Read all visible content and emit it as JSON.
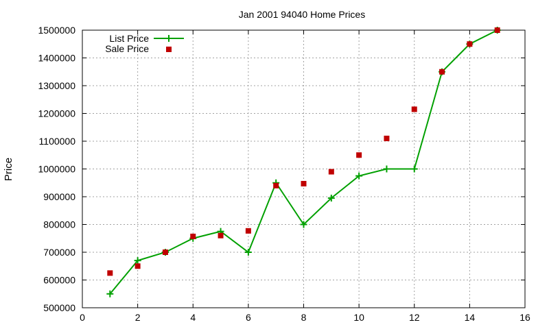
{
  "chart_data": {
    "type": "line",
    "title": "Jan 2001 94040 Home Prices",
    "xlabel": "",
    "ylabel": "Price",
    "xlim": [
      0,
      16
    ],
    "ylim": [
      500000,
      1500000
    ],
    "xticks": [
      0,
      2,
      4,
      6,
      8,
      10,
      12,
      14,
      16
    ],
    "yticks": [
      500000,
      600000,
      700000,
      800000,
      900000,
      1000000,
      1100000,
      1200000,
      1300000,
      1400000,
      1500000
    ],
    "grid": true,
    "legend_position": "top-left",
    "series": [
      {
        "name": "List Price",
        "style": "line-with-plus-markers",
        "color": "#00a000",
        "x": [
          1,
          2,
          3,
          4,
          5,
          6,
          7,
          8,
          9,
          10,
          11,
          12,
          13,
          14,
          15
        ],
        "y": [
          550000,
          670000,
          700000,
          750000,
          775000,
          700000,
          950000,
          800000,
          895000,
          975000,
          1000000,
          1000000,
          1350000,
          1450000,
          1500000
        ]
      },
      {
        "name": "Sale Price",
        "style": "square-markers",
        "color": "#c00000",
        "x": [
          1,
          2,
          3,
          4,
          5,
          6,
          7,
          8,
          9,
          10,
          11,
          12,
          13,
          14,
          15
        ],
        "y": [
          625000,
          650000,
          700000,
          757000,
          760000,
          777000,
          940000,
          947000,
          990000,
          1050000,
          1110000,
          1215000,
          1350000,
          1450000,
          1500000
        ]
      }
    ]
  }
}
